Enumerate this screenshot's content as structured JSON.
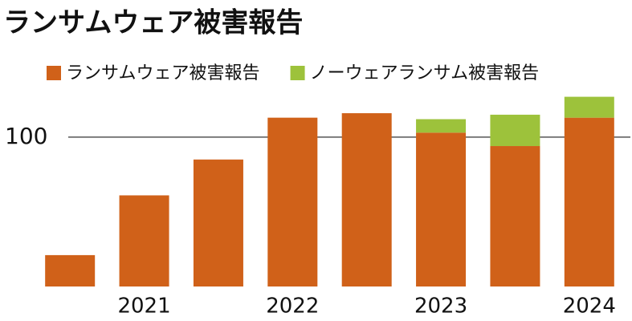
{
  "chart_data": {
    "type": "stacked_bar",
    "title": "ランサムウェア被害報告",
    "categories": [
      null,
      "2021",
      null,
      "2022",
      null,
      "2023",
      null,
      "2024"
    ],
    "series": [
      {
        "name": "ランサムウェア被害報告",
        "color": "#d06119",
        "values": [
          21,
          61,
          85,
          113,
          116,
          103,
          94,
          113
        ]
      },
      {
        "name": "ノーウェアランサム被害報告",
        "color": "#9dc23b",
        "values": [
          null,
          null,
          null,
          null,
          null,
          9,
          21,
          14
        ]
      }
    ],
    "ylim": [
      0,
      130
    ],
    "yticks": [
      100
    ],
    "grid": true
  }
}
